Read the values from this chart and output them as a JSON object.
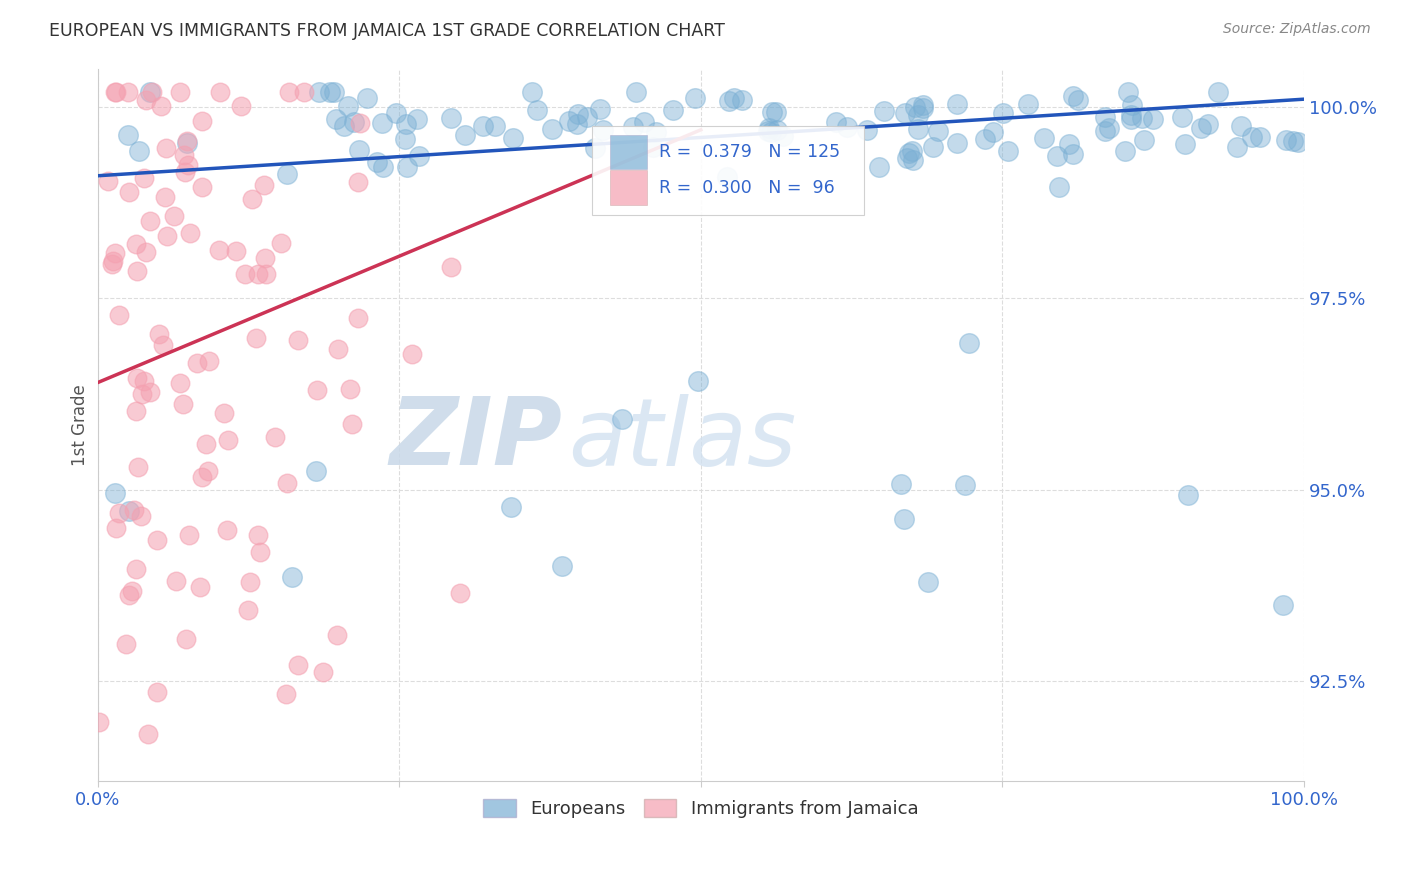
{
  "title": "EUROPEAN VS IMMIGRANTS FROM JAMAICA 1ST GRADE CORRELATION CHART",
  "source": "Source: ZipAtlas.com",
  "ylabel": "1st Grade",
  "watermark_zip": "ZIP",
  "watermark_atlas": "atlas",
  "legend_blue_label": "Europeans",
  "legend_pink_label": "Immigrants from Jamaica",
  "blue_R": 0.379,
  "blue_N": 125,
  "pink_R": 0.3,
  "pink_N": 96,
  "ytick_labels": [
    "100.0%",
    "97.5%",
    "95.0%",
    "92.5%"
  ],
  "ytick_values": [
    1.0,
    0.975,
    0.95,
    0.925
  ],
  "xlim": [
    0.0,
    1.0
  ],
  "ylim": [
    0.912,
    1.005
  ],
  "blue_color": "#7AAFD4",
  "pink_color": "#F4A0B0",
  "blue_line_color": "#2255BB",
  "pink_line_color": "#CC3355",
  "background_color": "#FFFFFF",
  "grid_color": "#DDDDDD",
  "title_color": "#333333",
  "tick_label_color": "#3366CC"
}
